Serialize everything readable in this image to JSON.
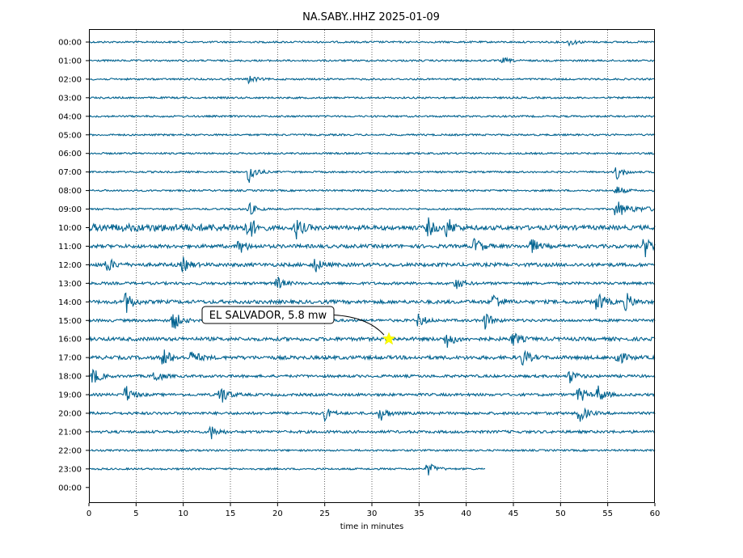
{
  "chart_data": {
    "type": "line",
    "title": "NA.SABY..HHZ 2025-01-09",
    "xlabel": "time in minutes",
    "ylabel": "",
    "xlim": [
      0,
      60
    ],
    "x_ticks": [
      "0",
      "5",
      "10",
      "15",
      "20",
      "25",
      "30",
      "35",
      "40",
      "45",
      "50",
      "55",
      "60"
    ],
    "y_tick_labels": [
      "00:00",
      "01:00",
      "02:00",
      "03:00",
      "04:00",
      "05:00",
      "06:00",
      "07:00",
      "08:00",
      "09:00",
      "10:00",
      "11:00",
      "12:00",
      "13:00",
      "14:00",
      "15:00",
      "16:00",
      "17:00",
      "18:00",
      "19:00",
      "20:00",
      "21:00",
      "22:00",
      "23:00",
      "00:00"
    ],
    "grid": "vertical dotted at x ticks",
    "trace_color": "#00628f",
    "last_trace_end_minute": 42,
    "rows": [
      {
        "label": "00:00",
        "base": 2,
        "events": [
          {
            "t": 51,
            "a": 4
          }
        ]
      },
      {
        "label": "01:00",
        "base": 2,
        "events": [
          {
            "t": 44,
            "a": 3
          }
        ]
      },
      {
        "label": "02:00",
        "base": 2,
        "events": [
          {
            "t": 17,
            "a": 5
          }
        ]
      },
      {
        "label": "03:00",
        "base": 2,
        "events": []
      },
      {
        "label": "04:00",
        "base": 2,
        "events": []
      },
      {
        "label": "05:00",
        "base": 2,
        "events": []
      },
      {
        "label": "06:00",
        "base": 2,
        "events": []
      },
      {
        "label": "07:00",
        "base": 2,
        "events": [
          {
            "t": 17,
            "a": 14
          },
          {
            "t": 56,
            "a": 9
          }
        ]
      },
      {
        "label": "08:00",
        "base": 2,
        "events": [
          {
            "t": 56,
            "a": 6
          }
        ]
      },
      {
        "label": "09:00",
        "base": 2,
        "events": [
          {
            "t": 17,
            "a": 8
          },
          {
            "t": 56,
            "a": 10
          }
        ]
      },
      {
        "label": "10:00",
        "base": 5,
        "events": [
          {
            "t": 17,
            "a": 14
          },
          {
            "t": 22,
            "a": 12
          },
          {
            "t": 36,
            "a": 10
          },
          {
            "t": 38,
            "a": 12
          }
        ]
      },
      {
        "label": "11:00",
        "base": 4,
        "events": [
          {
            "t": 16,
            "a": 8
          },
          {
            "t": 41,
            "a": 10
          },
          {
            "t": 47,
            "a": 8
          },
          {
            "t": 59,
            "a": 12
          }
        ]
      },
      {
        "label": "12:00",
        "base": 4,
        "events": [
          {
            "t": 2,
            "a": 8
          },
          {
            "t": 10,
            "a": 8
          },
          {
            "t": 24,
            "a": 8
          }
        ]
      },
      {
        "label": "13:00",
        "base": 3,
        "events": [
          {
            "t": 20,
            "a": 7
          },
          {
            "t": 39,
            "a": 6
          }
        ]
      },
      {
        "label": "14:00",
        "base": 4,
        "events": [
          {
            "t": 4,
            "a": 12
          },
          {
            "t": 43,
            "a": 10
          },
          {
            "t": 54,
            "a": 12
          },
          {
            "t": 57,
            "a": 10
          }
        ]
      },
      {
        "label": "15:00",
        "base": 3,
        "events": [
          {
            "t": 9,
            "a": 12
          },
          {
            "t": 35,
            "a": 8
          },
          {
            "t": 42,
            "a": 10
          }
        ]
      },
      {
        "label": "16:00",
        "base": 4,
        "events": [
          {
            "t": 38,
            "a": 10
          },
          {
            "t": 45,
            "a": 8
          }
        ]
      },
      {
        "label": "17:00",
        "base": 4,
        "events": [
          {
            "t": 8,
            "a": 10
          },
          {
            "t": 11,
            "a": 8
          },
          {
            "t": 46,
            "a": 10
          },
          {
            "t": 56,
            "a": 10
          }
        ]
      },
      {
        "label": "18:00",
        "base": 3,
        "events": [
          {
            "t": 0.5,
            "a": 10
          },
          {
            "t": 7,
            "a": 8
          },
          {
            "t": 51,
            "a": 8
          }
        ]
      },
      {
        "label": "19:00",
        "base": 3,
        "events": [
          {
            "t": 4,
            "a": 10
          },
          {
            "t": 14,
            "a": 12
          },
          {
            "t": 52,
            "a": 10
          },
          {
            "t": 54,
            "a": 10
          }
        ]
      },
      {
        "label": "20:00",
        "base": 3,
        "events": [
          {
            "t": 25,
            "a": 8
          },
          {
            "t": 31,
            "a": 8
          },
          {
            "t": 52,
            "a": 12
          }
        ]
      },
      {
        "label": "21:00",
        "base": 3,
        "events": [
          {
            "t": 13,
            "a": 8
          }
        ]
      },
      {
        "label": "22:00",
        "base": 2,
        "events": []
      },
      {
        "label": "23:00",
        "base": 2,
        "events": [
          {
            "t": 36,
            "a": 8
          }
        ]
      },
      {
        "label": "00:00",
        "base": 0,
        "events": []
      }
    ],
    "annotations": [
      {
        "text": "EL SALVADOR, 5.8 mw",
        "x": 31.8,
        "row": 16,
        "marker": "star",
        "marker_color": "#ffff00"
      }
    ]
  }
}
